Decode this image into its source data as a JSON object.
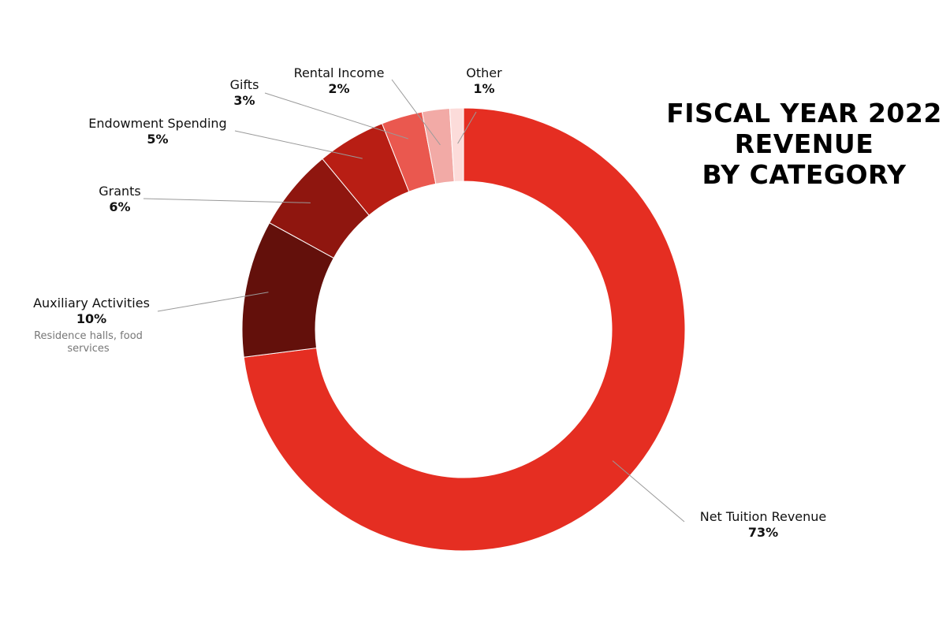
{
  "title": {
    "line1": "FISCAL YEAR 2022",
    "line2": "REVENUE",
    "line3": "BY CATEGORY"
  },
  "chart_data": {
    "type": "pie",
    "donut": true,
    "title": "FISCAL YEAR 2022 REVENUE BY CATEGORY",
    "slices": [
      {
        "label": "Net Tuition Revenue",
        "value": 73,
        "value_label": "73%",
        "note": "",
        "color": "#e52e22"
      },
      {
        "label": "Auxiliary Activities",
        "value": 10,
        "value_label": "10%",
        "note": "Residence halls, food services",
        "note_lines": [
          "Residence halls, food",
          "services"
        ],
        "color": "#63100b"
      },
      {
        "label": "Grants",
        "value": 6,
        "value_label": "6%",
        "note": "",
        "color": "#8f160f"
      },
      {
        "label": "Endowment Spending",
        "value": 5,
        "value_label": "5%",
        "note": "",
        "color": "#b81e14"
      },
      {
        "label": "Gifts",
        "value": 3,
        "value_label": "3%",
        "note": "",
        "color": "#ea584f"
      },
      {
        "label": "Rental Income",
        "value": 2,
        "value_label": "2%",
        "note": "",
        "color": "#f2aaa6"
      },
      {
        "label": "Other",
        "value": 1,
        "value_label": "1%",
        "note": "",
        "color": "#fcdcda"
      }
    ],
    "start_angle_deg": 0,
    "direction": "clockwise",
    "legend": "none",
    "labels_outside_with_leader_lines": true
  }
}
